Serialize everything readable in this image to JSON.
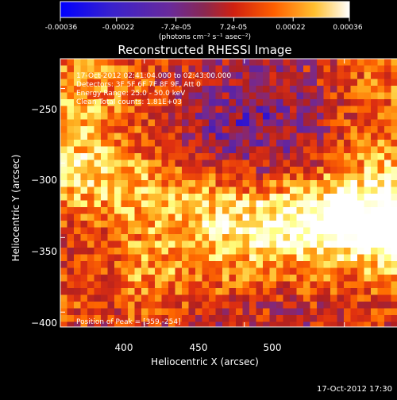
{
  "footer_timestamp": "17-Oct-2012 17:30",
  "colorbar": {
    "ticks": [
      "-0.00036",
      "-0.00022",
      "-7.2e-05",
      "7.2e-05",
      "0.00022",
      "0.00036"
    ],
    "tick_values": [
      -0.00036,
      -0.00022,
      -7.2e-05,
      7.2e-05,
      0.00022,
      0.00036
    ],
    "range": [
      -0.00036,
      0.00036
    ],
    "unit_label": "(photons cm⁻² s⁻¹ asec⁻²)"
  },
  "annotations": {
    "time_range": "17-Oct-2012 02:41:04.000 to 02:43:00.000",
    "detectors": "Detectors: 3F 5F 6F 7F 8F 9F, Att 0",
    "energy": "Energy Range: 25.0 - 50.0 keV",
    "algorithm": "Clean     Total counts: 1.81E+03",
    "peak": "Position of Peak = [359,-254]"
  },
  "colors": {
    "background": "#000000",
    "text": "#ffffff",
    "colormap": [
      "#0000ff",
      "#5522aa",
      "#7a2a8a",
      "#b02020",
      "#e03010",
      "#ff6a00",
      "#ffb020",
      "#ffff80",
      "#ffffff"
    ]
  },
  "chart_data": {
    "type": "heatmap",
    "title": "Reconstructed RHESSI Image",
    "xlabel": "Heliocentric X (arcsec)",
    "ylabel": "Heliocentric Y (arcsec)",
    "xlim": [
      358,
      543
    ],
    "ylim": [
      -410,
      -230
    ],
    "x_ticks": [
      400,
      450,
      500
    ],
    "x_tick_labels": [
      "400",
      "450",
      "500"
    ],
    "y_ticks": [
      -250,
      -300,
      -350,
      -400
    ],
    "y_tick_labels": [
      "−250",
      "−300",
      "−350",
      "−400"
    ],
    "colorscale_range": [
      -0.00036,
      0.00036
    ],
    "peak_position": [
      359,
      -254
    ]
  }
}
